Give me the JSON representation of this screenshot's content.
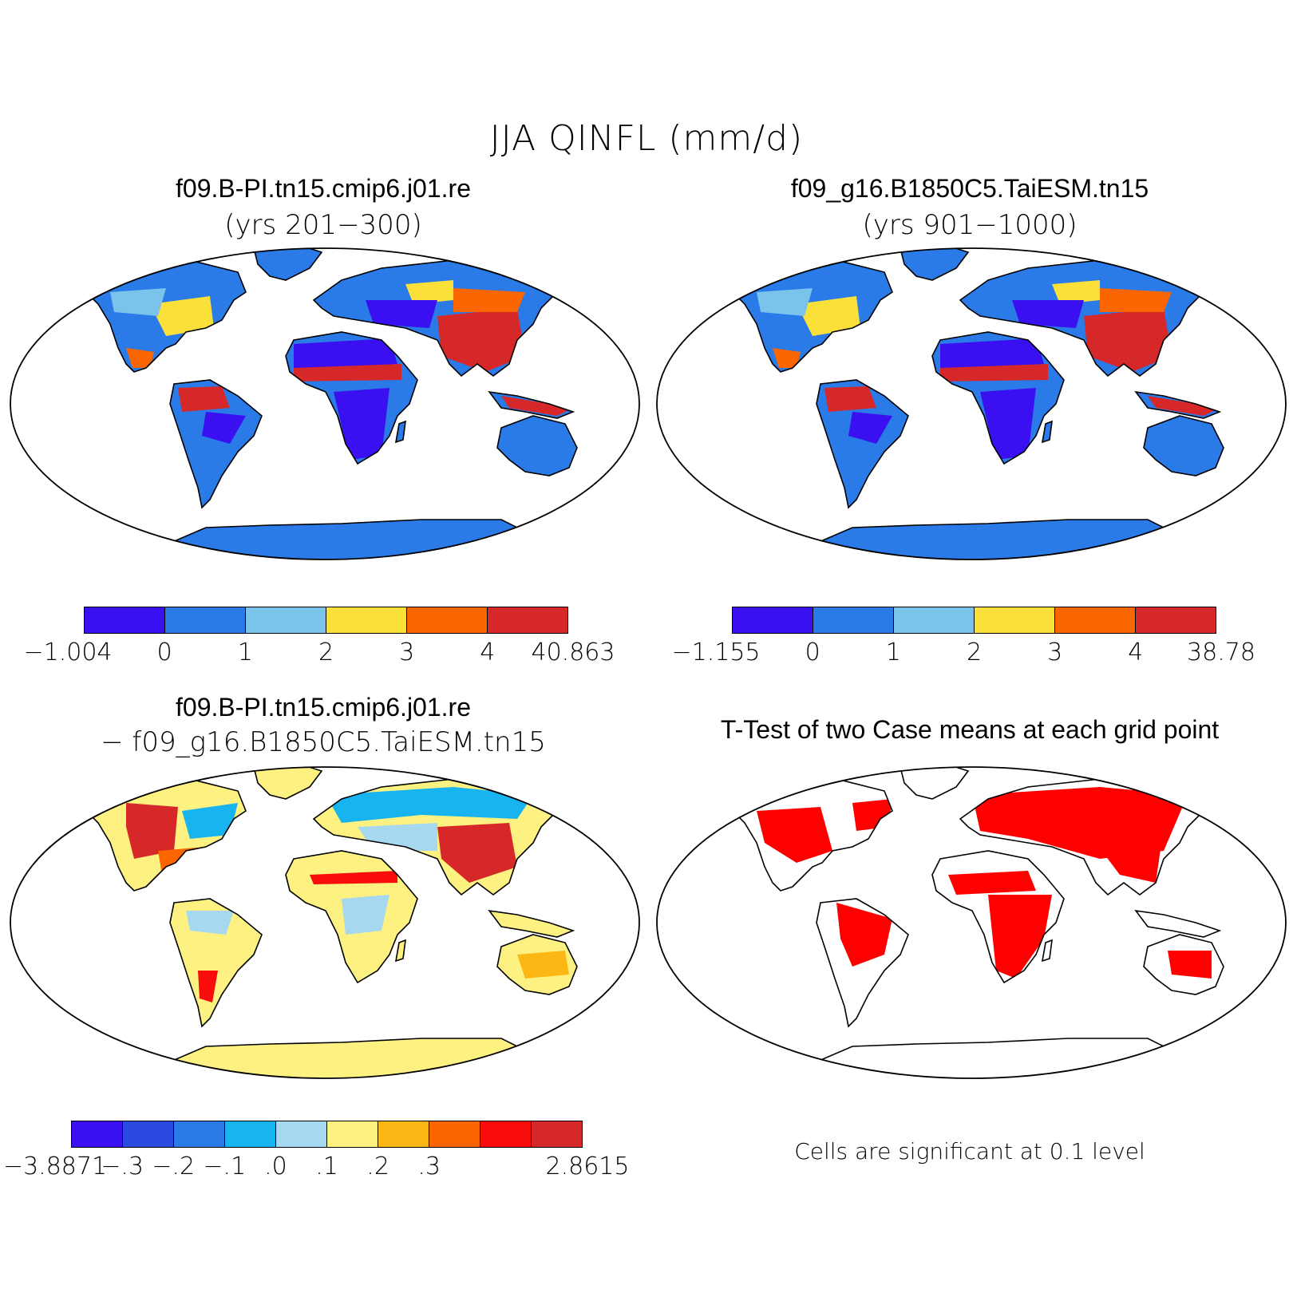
{
  "title": "JJA QINFL (mm/d)",
  "panels": [
    {
      "title": "f09.B-PI.tn15.cmip6.j01.re",
      "subtitle": "(yrs 201−300)",
      "colorbar": {
        "colors": [
          "#3a10f0",
          "#2a7ae8",
          "#7ac4ec",
          "#fbe03a",
          "#fb6600",
          "#d62828"
        ],
        "labels": [
          "−1.004",
          "0",
          "1",
          "2",
          "3",
          "4",
          "40.863"
        ]
      }
    },
    {
      "title": "f09_g16.B1850C5.TaiESM.tn15",
      "subtitle": "(yrs 901−1000)",
      "colorbar": {
        "colors": [
          "#3a10f0",
          "#2a7ae8",
          "#7ac4ec",
          "#fbe03a",
          "#fb6600",
          "#d62828"
        ],
        "labels": [
          "−1.155",
          "0",
          "1",
          "2",
          "3",
          "4",
          "38.78"
        ]
      }
    },
    {
      "title": "f09.B-PI.tn15.cmip6.j01.re",
      "subtitle": "− f09_g16.B1850C5.TaiESM.tn15",
      "colorbar": {
        "colors": [
          "#3a10f0",
          "#2b4ae0",
          "#2a7ae8",
          "#18b4f0",
          "#a6d8f0",
          "#fdf281",
          "#fcb714",
          "#fb6600",
          "#f80c0c",
          "#d62828"
        ],
        "labels": [
          "−3.8871",
          "−.3",
          "−.2",
          "−.1",
          ".0",
          ".1",
          ".2",
          ".3",
          "2.8615"
        ]
      }
    },
    {
      "title": "T-Test of two Case means at each grid point",
      "note": "Cells are significant at 0.1 level",
      "signif_color": "#ff0000"
    }
  ]
}
